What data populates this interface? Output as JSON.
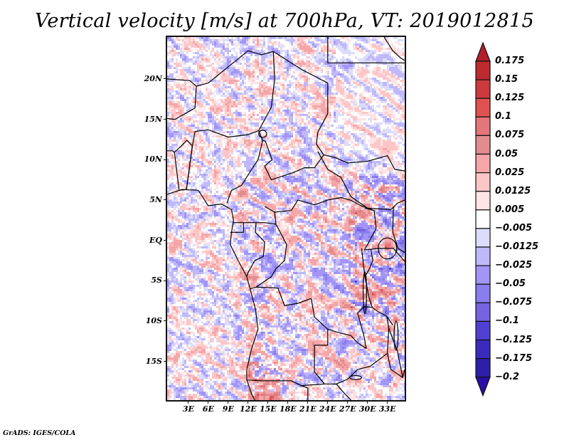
{
  "title": "Vertical velocity [m/s] at 700hPa, VT: 2019012815",
  "credit": "GrADS: IGES/COLA",
  "chart_data": {
    "type": "heatmap",
    "title": "Vertical velocity [m/s] at 700hPa, VT: 2019012815",
    "variable": "Vertical velocity",
    "units": "m/s",
    "level": "700hPa",
    "valid_time": "2019012815",
    "xlabel": "",
    "ylabel": "",
    "lon_range": [
      -0.2,
      35.6
    ],
    "lat_range": [
      -19.8,
      25.2
    ],
    "x_ticks": [
      {
        "value": 3,
        "label": "3E"
      },
      {
        "value": 6,
        "label": "6E"
      },
      {
        "value": 9,
        "label": "9E"
      },
      {
        "value": 12,
        "label": "12E"
      },
      {
        "value": 15,
        "label": "15E"
      },
      {
        "value": 18,
        "label": "18E"
      },
      {
        "value": 21,
        "label": "21E"
      },
      {
        "value": 24,
        "label": "24E"
      },
      {
        "value": 27,
        "label": "27E"
      },
      {
        "value": 30,
        "label": "30E"
      },
      {
        "value": 33,
        "label": "33E"
      }
    ],
    "y_ticks": [
      {
        "value": 20,
        "label": "20N"
      },
      {
        "value": 15,
        "label": "15N"
      },
      {
        "value": 10,
        "label": "10N"
      },
      {
        "value": 5,
        "label": "5N"
      },
      {
        "value": 0,
        "label": "EQ"
      },
      {
        "value": -5,
        "label": "5S"
      },
      {
        "value": -10,
        "label": "10S"
      },
      {
        "value": -15,
        "label": "15S"
      }
    ],
    "colorbar": {
      "orientation": "vertical",
      "position": "right",
      "extend": "both",
      "levels": [
        0.175,
        0.15,
        0.125,
        0.1,
        0.075,
        0.05,
        0.025,
        0.0125,
        0.005,
        -0.005,
        -0.0125,
        -0.025,
        -0.05,
        -0.075,
        -0.1,
        -0.125,
        -0.175,
        -0.2
      ],
      "level_labels": [
        "0.175",
        "0.15",
        "0.125",
        "0.1",
        "0.075",
        "0.05",
        "0.025",
        "0.0125",
        "0.005",
        "−0.005",
        "−0.0125",
        "−0.025",
        "−0.05",
        "−0.075",
        "−0.1",
        "−0.125",
        "−0.175",
        "−0.2"
      ],
      "colors_top_to_bottom": [
        "#b0202a",
        "#bd2a30",
        "#cc3a3e",
        "#e05252",
        "#e4757a",
        "#e38c90",
        "#f4a6a8",
        "#fcc6c7",
        "#fde4e5",
        "#ffffff",
        "#dcdcfb",
        "#bfb8fa",
        "#a295f6",
        "#8a7ded",
        "#7563e0",
        "#5040d2",
        "#3a2bbf",
        "#2c1fa8",
        "#2a0ea6"
      ]
    },
    "grid": false,
    "features": [
      "coastlines",
      "country borders",
      "lakes"
    ]
  }
}
